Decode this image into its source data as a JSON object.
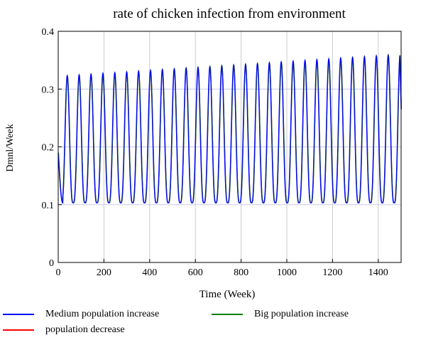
{
  "chart_data": {
    "type": "line",
    "title": "rate of chicken infection from environment",
    "xlabel": "Time (Week)",
    "ylabel": "Dmnl/Week",
    "xlim": [
      0,
      1500
    ],
    "ylim": [
      0,
      0.4
    ],
    "x_ticks": [
      0,
      200,
      400,
      600,
      800,
      1000,
      1200,
      1400
    ],
    "y_ticks": [
      0,
      0.1,
      0.2,
      0.3,
      0.4
    ],
    "x_tick_labels": [
      "0",
      "200",
      "400",
      "600",
      "800",
      "1000",
      "1200",
      "1400"
    ],
    "y_tick_labels": [
      "0",
      "0.1",
      "0.2",
      "0.3",
      "0.4"
    ],
    "grid": true,
    "legend_position": "bottom",
    "oscillation": {
      "period_weeks": 52,
      "first_peak_week": 39,
      "peak_start": 0.322,
      "peak_end": 0.36,
      "trough": 0.103,
      "start_value": 0.19,
      "end_value": 0.265
    },
    "series": [
      {
        "name": "Medium population increase",
        "color": "#0000ff"
      },
      {
        "name": "Big population increase",
        "color": "#008000"
      },
      {
        "name": "population decrease",
        "color": "#ff0000"
      }
    ]
  }
}
